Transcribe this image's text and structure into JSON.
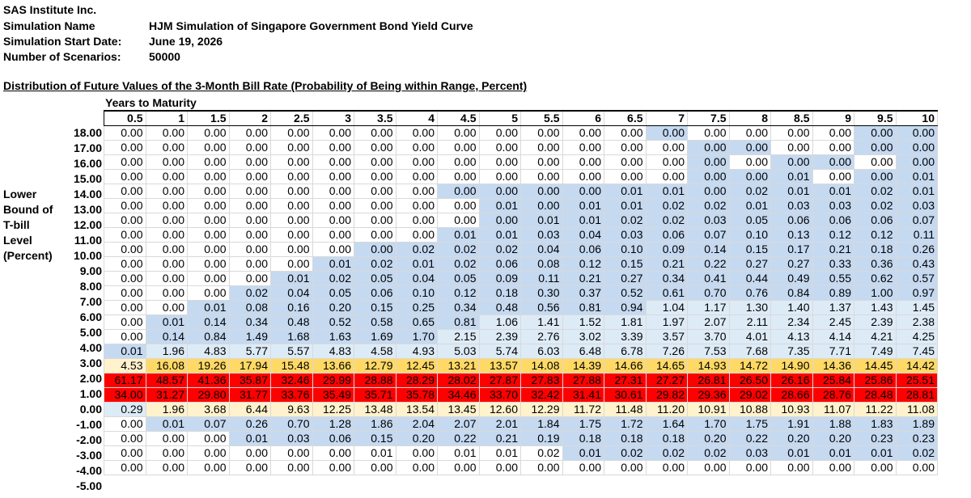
{
  "header": {
    "company": "SAS Institute Inc.",
    "rows": [
      {
        "label": "Simulation Name",
        "value": "HJM Simulation of Singapore Government Bond Yield Curve"
      },
      {
        "label": "Simulation Start Date:",
        "value": "June 19, 2026"
      },
      {
        "label": "Number of Scenarios:",
        "value": "50000"
      }
    ]
  },
  "table": {
    "title": "Distribution of Future Values of the 3-Month Bill Rate (Probability of Being within Range, Percent)",
    "col_group_label": "Years to Maturity",
    "row_axis_label": [
      "Lower",
      "Bound of",
      "T-bill",
      "Level",
      "(Percent)"
    ],
    "columns": [
      "0.5",
      "1",
      "1.5",
      "2",
      "2.5",
      "3",
      "3.5",
      "4",
      "4.5",
      "5",
      "5.5",
      "6",
      "6.5",
      "7",
      "7.5",
      "8",
      "8.5",
      "9",
      "9.5",
      "10"
    ],
    "rows": [
      {
        "label": "18.00",
        "values": [
          "0.00",
          "0.00",
          "0.00",
          "0.00",
          "0.00",
          "0.00",
          "0.00",
          "0.00",
          "0.00",
          "0.00",
          "0.00",
          "0.00",
          "0.00",
          "0.00",
          "0.00",
          "0.00",
          "0.00",
          "0.00",
          "0.00",
          "0.00"
        ]
      },
      {
        "label": "17.00",
        "values": [
          "0.00",
          "0.00",
          "0.00",
          "0.00",
          "0.00",
          "0.00",
          "0.00",
          "0.00",
          "0.00",
          "0.00",
          "0.00",
          "0.00",
          "0.00",
          "0.00",
          "0.00",
          "0.00",
          "0.00",
          "0.00",
          "0.00",
          "0.00"
        ]
      },
      {
        "label": "16.00",
        "values": [
          "0.00",
          "0.00",
          "0.00",
          "0.00",
          "0.00",
          "0.00",
          "0.00",
          "0.00",
          "0.00",
          "0.00",
          "0.00",
          "0.00",
          "0.00",
          "0.00",
          "0.00",
          "0.00",
          "0.00",
          "0.00",
          "0.00",
          "0.00"
        ]
      },
      {
        "label": "15.00",
        "values": [
          "0.00",
          "0.00",
          "0.00",
          "0.00",
          "0.00",
          "0.00",
          "0.00",
          "0.00",
          "0.00",
          "0.00",
          "0.00",
          "0.00",
          "0.00",
          "0.00",
          "0.00",
          "0.00",
          "0.01",
          "0.00",
          "0.00",
          "0.01"
        ]
      },
      {
        "label": "14.00",
        "values": [
          "0.00",
          "0.00",
          "0.00",
          "0.00",
          "0.00",
          "0.00",
          "0.00",
          "0.00",
          "0.00",
          "0.00",
          "0.00",
          "0.00",
          "0.01",
          "0.01",
          "0.00",
          "0.02",
          "0.01",
          "0.01",
          "0.02",
          "0.01"
        ]
      },
      {
        "label": "13.00",
        "values": [
          "0.00",
          "0.00",
          "0.00",
          "0.00",
          "0.00",
          "0.00",
          "0.00",
          "0.00",
          "0.00",
          "0.01",
          "0.00",
          "0.01",
          "0.01",
          "0.02",
          "0.02",
          "0.01",
          "0.03",
          "0.03",
          "0.02",
          "0.03"
        ]
      },
      {
        "label": "12.00",
        "values": [
          "0.00",
          "0.00",
          "0.00",
          "0.00",
          "0.00",
          "0.00",
          "0.00",
          "0.00",
          "0.00",
          "0.00",
          "0.01",
          "0.01",
          "0.02",
          "0.02",
          "0.03",
          "0.05",
          "0.06",
          "0.06",
          "0.06",
          "0.07"
        ]
      },
      {
        "label": "11.00",
        "values": [
          "0.00",
          "0.00",
          "0.00",
          "0.00",
          "0.00",
          "0.00",
          "0.00",
          "0.00",
          "0.01",
          "0.01",
          "0.03",
          "0.04",
          "0.03",
          "0.06",
          "0.07",
          "0.10",
          "0.13",
          "0.12",
          "0.12",
          "0.11"
        ]
      },
      {
        "label": "10.00",
        "values": [
          "0.00",
          "0.00",
          "0.00",
          "0.00",
          "0.00",
          "0.00",
          "0.00",
          "0.02",
          "0.02",
          "0.02",
          "0.04",
          "0.06",
          "0.10",
          "0.09",
          "0.14",
          "0.15",
          "0.17",
          "0.21",
          "0.18",
          "0.26"
        ]
      },
      {
        "label": "9.00",
        "values": [
          "0.00",
          "0.00",
          "0.00",
          "0.00",
          "0.00",
          "0.01",
          "0.02",
          "0.01",
          "0.02",
          "0.06",
          "0.08",
          "0.12",
          "0.15",
          "0.21",
          "0.22",
          "0.27",
          "0.27",
          "0.33",
          "0.36",
          "0.43"
        ]
      },
      {
        "label": "8.00",
        "values": [
          "0.00",
          "0.00",
          "0.00",
          "0.00",
          "0.01",
          "0.02",
          "0.05",
          "0.04",
          "0.05",
          "0.09",
          "0.11",
          "0.21",
          "0.27",
          "0.34",
          "0.41",
          "0.44",
          "0.49",
          "0.55",
          "0.62",
          "0.57"
        ]
      },
      {
        "label": "7.00",
        "values": [
          "0.00",
          "0.00",
          "0.00",
          "0.02",
          "0.04",
          "0.05",
          "0.06",
          "0.10",
          "0.12",
          "0.18",
          "0.30",
          "0.37",
          "0.52",
          "0.61",
          "0.70",
          "0.76",
          "0.84",
          "0.89",
          "1.00",
          "0.97"
        ]
      },
      {
        "label": "6.00",
        "values": [
          "0.00",
          "0.00",
          "0.01",
          "0.08",
          "0.16",
          "0.20",
          "0.15",
          "0.25",
          "0.34",
          "0.48",
          "0.56",
          "0.81",
          "0.94",
          "1.04",
          "1.17",
          "1.30",
          "1.40",
          "1.37",
          "1.43",
          "1.45"
        ]
      },
      {
        "label": "5.00",
        "values": [
          "0.00",
          "0.01",
          "0.14",
          "0.34",
          "0.48",
          "0.52",
          "0.58",
          "0.65",
          "0.81",
          "1.06",
          "1.41",
          "1.52",
          "1.81",
          "1.97",
          "2.07",
          "2.11",
          "2.34",
          "2.45",
          "2.39",
          "2.38"
        ]
      },
      {
        "label": "4.00",
        "values": [
          "0.00",
          "0.14",
          "0.84",
          "1.49",
          "1.68",
          "1.63",
          "1.69",
          "1.70",
          "2.15",
          "2.39",
          "2.76",
          "3.02",
          "3.39",
          "3.57",
          "3.70",
          "4.01",
          "4.13",
          "4.14",
          "4.21",
          "4.25"
        ]
      },
      {
        "label": "3.00",
        "values": [
          "0.01",
          "1.96",
          "4.83",
          "5.77",
          "5.57",
          "4.83",
          "4.58",
          "4.93",
          "5.03",
          "5.74",
          "6.03",
          "6.48",
          "6.78",
          "7.26",
          "7.53",
          "7.68",
          "7.35",
          "7.71",
          "7.49",
          "7.45"
        ]
      },
      {
        "label": "2.00",
        "values": [
          "4.53",
          "16.08",
          "19.26",
          "17.94",
          "15.48",
          "13.66",
          "12.79",
          "12.45",
          "13.21",
          "13.57",
          "14.08",
          "14.39",
          "14.66",
          "14.65",
          "14.93",
          "14.72",
          "14.90",
          "14.36",
          "14.45",
          "14.42"
        ]
      },
      {
        "label": "1.00",
        "values": [
          "61.17",
          "48.57",
          "41.36",
          "35.87",
          "32.46",
          "29.99",
          "28.88",
          "28.29",
          "28.02",
          "27.87",
          "27.83",
          "27.88",
          "27.31",
          "27.27",
          "26.81",
          "26.50",
          "26.16",
          "25.84",
          "25.86",
          "25.51"
        ]
      },
      {
        "label": "0.00",
        "values": [
          "34.00",
          "31.27",
          "29.80",
          "31.77",
          "33.76",
          "35.49",
          "35.71",
          "35.78",
          "34.46",
          "33.70",
          "32.42",
          "31.41",
          "30.61",
          "29.82",
          "29.36",
          "29.02",
          "28.66",
          "28.76",
          "28.48",
          "28.81"
        ]
      },
      {
        "label": "-1.00",
        "values": [
          "0.29",
          "1.96",
          "3.68",
          "6.44",
          "9.63",
          "12.25",
          "13.48",
          "13.54",
          "13.45",
          "12.60",
          "12.29",
          "11.72",
          "11.48",
          "11.20",
          "10.91",
          "10.88",
          "10.93",
          "11.07",
          "11.22",
          "11.08"
        ]
      },
      {
        "label": "-2.00",
        "values": [
          "0.00",
          "0.01",
          "0.07",
          "0.26",
          "0.70",
          "1.28",
          "1.86",
          "2.04",
          "2.07",
          "2.01",
          "1.84",
          "1.75",
          "1.72",
          "1.64",
          "1.70",
          "1.75",
          "1.91",
          "1.88",
          "1.83",
          "1.89"
        ]
      },
      {
        "label": "-3.00",
        "values": [
          "0.00",
          "0.00",
          "0.00",
          "0.01",
          "0.03",
          "0.06",
          "0.15",
          "0.20",
          "0.22",
          "0.21",
          "0.19",
          "0.18",
          "0.18",
          "0.18",
          "0.20",
          "0.22",
          "0.20",
          "0.20",
          "0.23",
          "0.23"
        ]
      },
      {
        "label": "-4.00",
        "values": [
          "0.00",
          "0.00",
          "0.00",
          "0.00",
          "0.00",
          "0.00",
          "0.01",
          "0.00",
          "0.01",
          "0.01",
          "0.02",
          "0.01",
          "0.02",
          "0.02",
          "0.02",
          "0.03",
          "0.01",
          "0.01",
          "0.01",
          "0.02"
        ]
      },
      {
        "label": "-5.00",
        "values": [
          "0.00",
          "0.00",
          "0.00",
          "0.00",
          "0.00",
          "0.00",
          "0.00",
          "0.00",
          "0.00",
          "0.00",
          "0.00",
          "0.00",
          "0.00",
          "0.00",
          "0.00",
          "0.00",
          "0.00",
          "0.00",
          "0.00",
          "0.00"
        ]
      }
    ],
    "fill_classes": [
      "00000000000001000011",
      "00000000000000110011",
      "00000000000000101101",
      "00000000000000111011",
      "00000000111111111111",
      "00000000011111111111",
      "00000000011111111111",
      "00000000111111111111",
      "00000011111111111111",
      "00000111111111111111",
      "00001111111111111111",
      "00011111111111111111",
      "00111111111112222222",
      "01111111122222222222",
      "01111111222222222222",
      "12222222222222222222",
      "34444444444444444444",
      "55555555555555555555",
      "55555555555555555555",
      "23333333333333333333",
      "01111111111111111111",
      "00011111111111111111",
      "00000000000111111111",
      "00000000000000000000"
    ]
  }
}
